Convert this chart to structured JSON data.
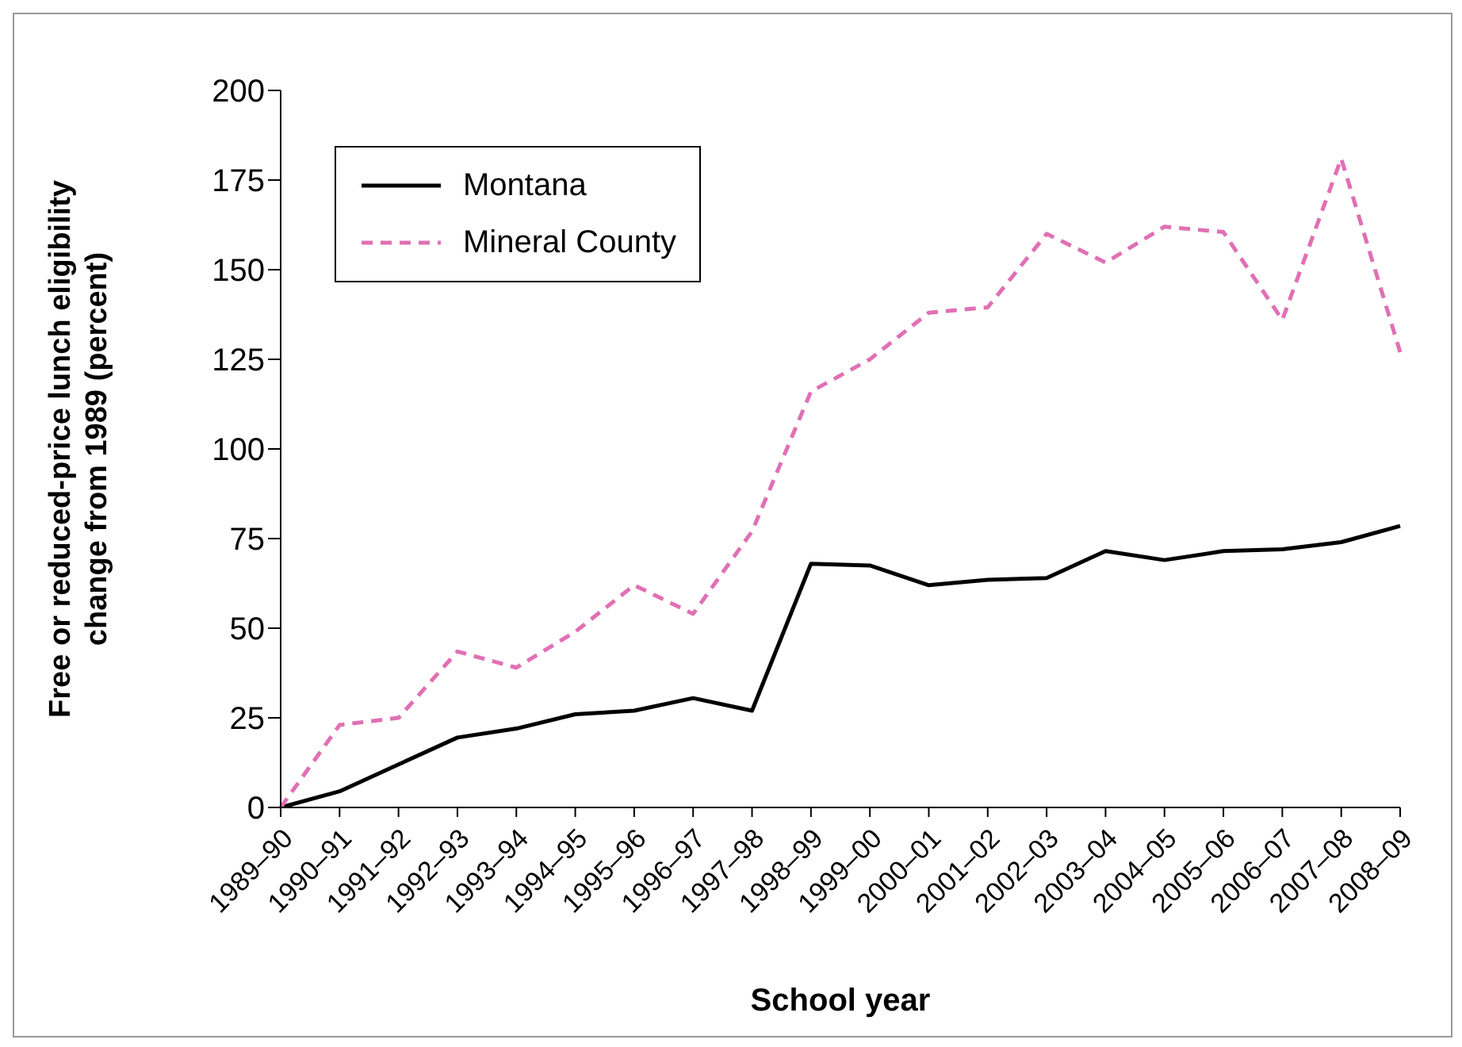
{
  "chart_data": {
    "type": "line",
    "xlabel": "School year",
    "ylabel": "Free or reduced-price lunch eligibility change from 1989 (percent)",
    "categories": [
      "1989–90",
      "1990–91",
      "1991–92",
      "1992–93",
      "1993–94",
      "1994–95",
      "1995–96",
      "1996–97",
      "1997–98",
      "1998–99",
      "1999–00",
      "2000–01",
      "2001–02",
      "2002–03",
      "2003–04",
      "2004–05",
      "2005–06",
      "2006–07",
      "2007–08",
      "2008–09"
    ],
    "series": [
      {
        "name": "Montana",
        "color": "#000000",
        "line_style": "solid",
        "values": [
          0,
          4.5,
          12,
          19.5,
          22,
          26,
          27,
          30.5,
          27,
          68,
          67.5,
          62,
          63.5,
          64,
          71.5,
          69,
          71.5,
          72,
          74,
          78.5
        ]
      },
      {
        "name": "Mineral County",
        "color": "#e070b4",
        "line_style": "dashed",
        "values": [
          0,
          23,
          25,
          43.5,
          39,
          49,
          62,
          54,
          77,
          116,
          125,
          138,
          139.5,
          160,
          152,
          162,
          160.5,
          136,
          181,
          127
        ]
      }
    ],
    "ylim": [
      0,
      200
    ],
    "yticks": [
      0,
      25,
      50,
      75,
      100,
      125,
      150,
      175,
      200
    ],
    "grid": false,
    "legend": "top left",
    "marker": "none"
  }
}
